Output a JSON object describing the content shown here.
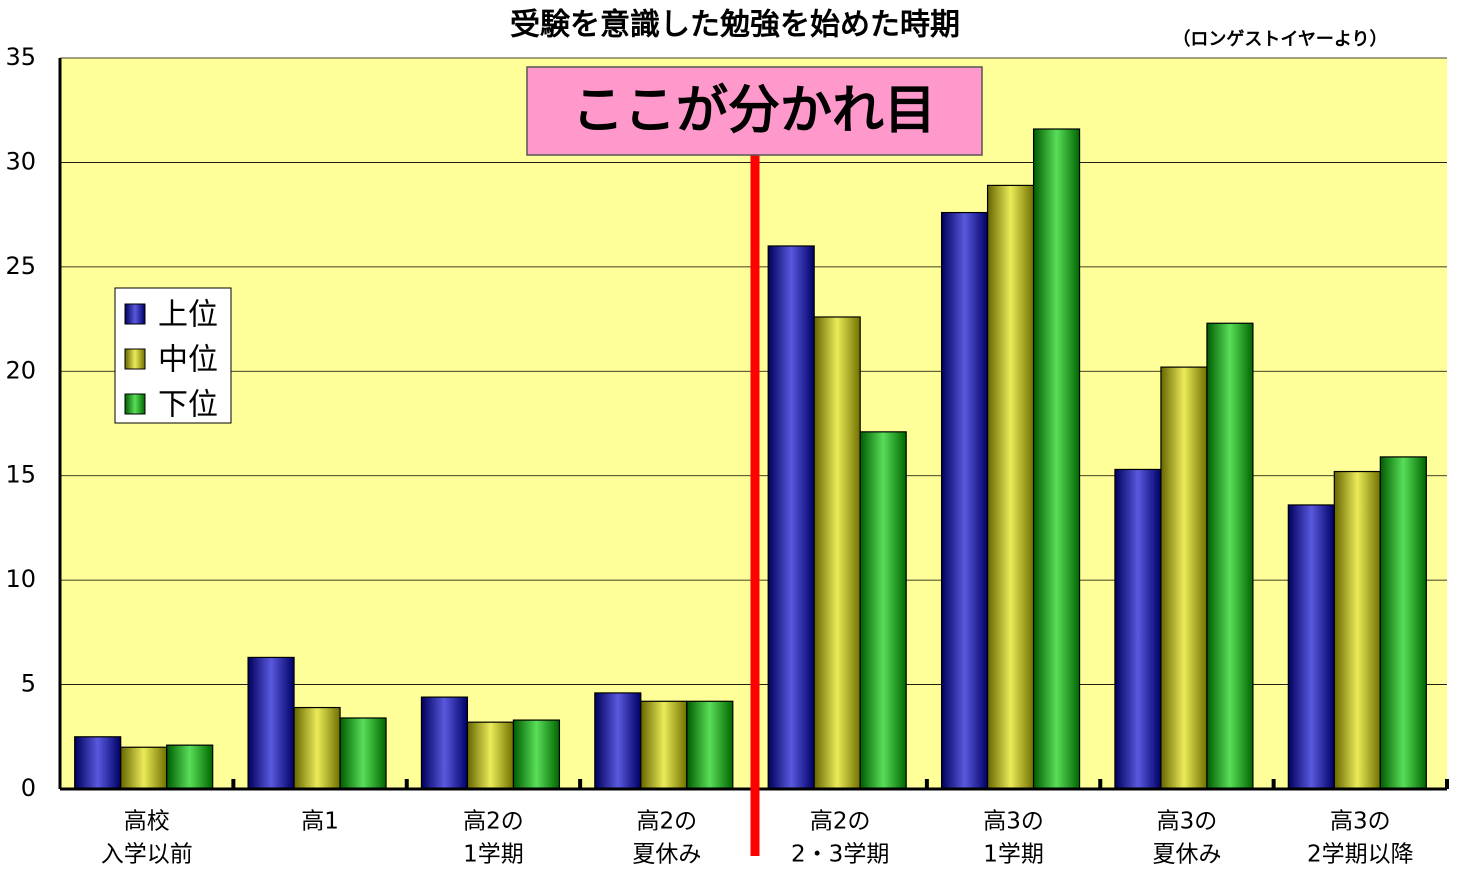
{
  "chart_data": {
    "type": "bar",
    "title": "受験を意識した勉強を始めた時期",
    "source": "（ロンゲストイヤーより）",
    "annotation": "ここが分かれ目",
    "categories": [
      [
        "高校",
        "入学以前"
      ],
      [
        "高1"
      ],
      [
        "高2の",
        "1学期"
      ],
      [
        "高2の",
        "夏休み"
      ],
      [
        "高2の",
        "2・3学期"
      ],
      [
        "高3の",
        "1学期"
      ],
      [
        "高3の",
        "夏休み"
      ],
      [
        "高3の",
        "2学期以降"
      ]
    ],
    "series": [
      {
        "name": "上位",
        "color": "#0000cc",
        "values": [
          2.5,
          6.3,
          4.4,
          4.6,
          26.0,
          27.6,
          15.3,
          13.6
        ]
      },
      {
        "name": "中位",
        "color": "#e0e000",
        "values": [
          2.0,
          3.9,
          3.2,
          4.2,
          22.6,
          28.9,
          20.2,
          15.2
        ]
      },
      {
        "name": "下位",
        "color": "#00cc00",
        "values": [
          2.1,
          3.4,
          3.3,
          4.2,
          17.1,
          31.6,
          22.3,
          15.9
        ]
      }
    ],
    "ylim": [
      0,
      35
    ],
    "yticks": [
      0,
      5,
      10,
      15,
      20,
      25,
      30,
      35
    ],
    "grid": true,
    "plot_background": "#ffff99",
    "legend_position": "upper left"
  }
}
